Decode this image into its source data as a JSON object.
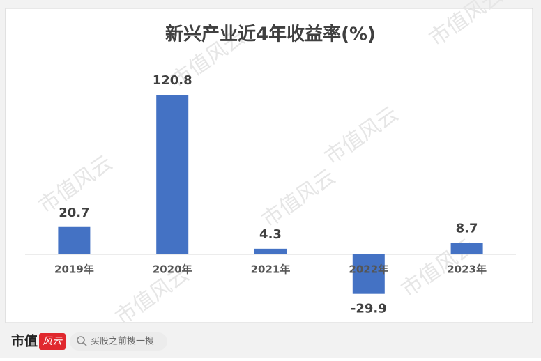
{
  "chart_data": {
    "type": "bar",
    "title": "新兴产业近4年收益率(%)",
    "categories": [
      "2019年",
      "2020年",
      "2021年",
      "2022年",
      "2023年"
    ],
    "values": [
      20.7,
      120.8,
      4.3,
      -29.9,
      8.7
    ],
    "color": "#4472c4"
  },
  "watermark": "市值风云",
  "footer": {
    "logo": "市值",
    "badge": "风云",
    "search": "买股之前搜一搜"
  }
}
